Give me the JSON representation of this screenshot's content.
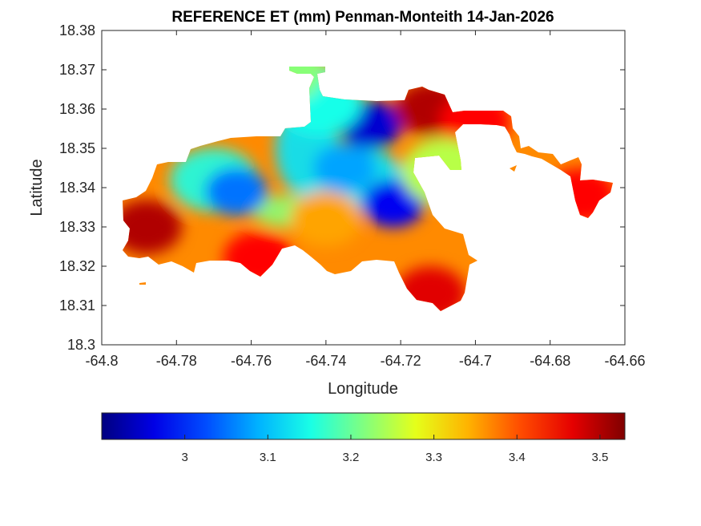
{
  "figure": {
    "title": "REFERENCE ET (mm) Penman-Monteith 14-Jan-2026"
  },
  "map": {
    "xlabel": "Longitude",
    "ylabel": "Latitude",
    "xlim": [
      -64.8,
      -64.66
    ],
    "ylim": [
      18.3,
      18.38
    ],
    "xticks": [
      "-64.8",
      "-64.78",
      "-64.76",
      "-64.74",
      "-64.72",
      "-64.7",
      "-64.68",
      "-64.66"
    ],
    "yticks": [
      "18.3",
      "18.31",
      "18.32",
      "18.33",
      "18.34",
      "18.35",
      "18.36",
      "18.37",
      "18.38"
    ]
  },
  "colorbar": {
    "colormap": "jet",
    "range": [
      2.9,
      3.53
    ],
    "ticks": [
      "3",
      "3.1",
      "3.2",
      "3.3",
      "3.4",
      "3.5"
    ],
    "stops": [
      "#00008f",
      "#0000ff",
      "#00ffff",
      "#ffff00",
      "#ff0000",
      "#800000"
    ]
  },
  "chart_data": {
    "type": "heatmap",
    "title": "REFERENCE ET (mm) Penman-Monteith 14-Jan-2026",
    "xlabel": "Longitude",
    "ylabel": "Latitude",
    "xlim": [
      -64.8,
      -64.66
    ],
    "ylim": [
      18.3,
      18.38
    ],
    "value_range": [
      2.9,
      3.53
    ],
    "colormap": "jet",
    "grid": false,
    "regions": [
      {
        "lon": -64.728,
        "lat": 18.356,
        "value": 2.95
      },
      {
        "lon": -64.722,
        "lat": 18.336,
        "value": 2.97
      },
      {
        "lon": -64.764,
        "lat": 18.339,
        "value": 3.05
      },
      {
        "lon": -64.735,
        "lat": 18.345,
        "value": 3.08
      },
      {
        "lon": -64.742,
        "lat": 18.362,
        "value": 3.15
      },
      {
        "lon": -64.752,
        "lat": 18.37,
        "value": 3.22
      },
      {
        "lon": -64.74,
        "lat": 18.332,
        "value": 3.35
      },
      {
        "lon": -64.788,
        "lat": 18.33,
        "value": 3.5
      },
      {
        "lon": -64.758,
        "lat": 18.322,
        "value": 3.45
      },
      {
        "lon": -64.712,
        "lat": 18.36,
        "value": 3.5
      },
      {
        "lon": -64.712,
        "lat": 18.313,
        "value": 3.47
      },
      {
        "lon": -64.672,
        "lat": 18.338,
        "value": 3.45
      },
      {
        "lon": -64.7,
        "lat": 18.357,
        "value": 3.45
      },
      {
        "lon": -64.708,
        "lat": 18.344,
        "value": 3.25
      }
    ]
  }
}
